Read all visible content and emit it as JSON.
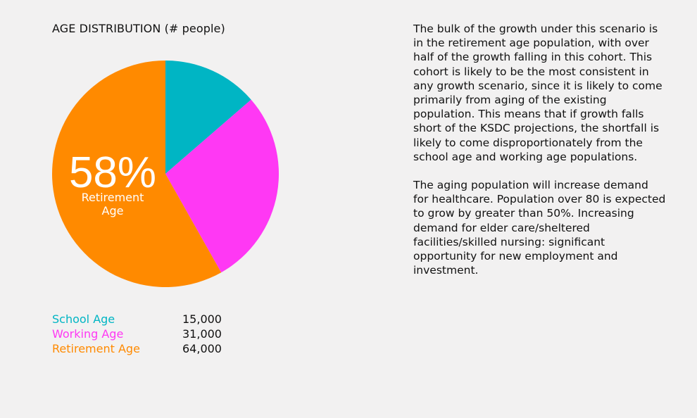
{
  "chart_data": {
    "type": "pie",
    "title": "AGE DISTRIBUTION (# people)",
    "categories": [
      "School Age",
      "Working Age",
      "Retirement Age"
    ],
    "values": [
      15000,
      31000,
      64000
    ],
    "value_labels": [
      "15,000",
      "31,000",
      "64,000"
    ],
    "colors": [
      "#00b5c4",
      "#ff38f4",
      "#ff8a00"
    ],
    "callout": {
      "value": "58%",
      "label_line1": "Retirement",
      "label_line2": "Age"
    }
  },
  "text": {
    "paragraph_1": "The bulk of the growth under this scenario is in the retirement age population, with over half of the growth falling in this cohort. This cohort is likely to be the most consistent in any growth scenario, since it is likely to come primarily from aging of the existing population. This means that if growth falls short of the KSDC projections, the shortfall is likely to come disproportionately from the school age and working age populations.",
    "paragraph_2": "The aging population will increase demand for healthcare. Population over 80 is expected to grow by greater than 50%. Increasing demand for elder care/sheltered facilities/skilled nursing: significant opportunity for new employment and investment."
  }
}
